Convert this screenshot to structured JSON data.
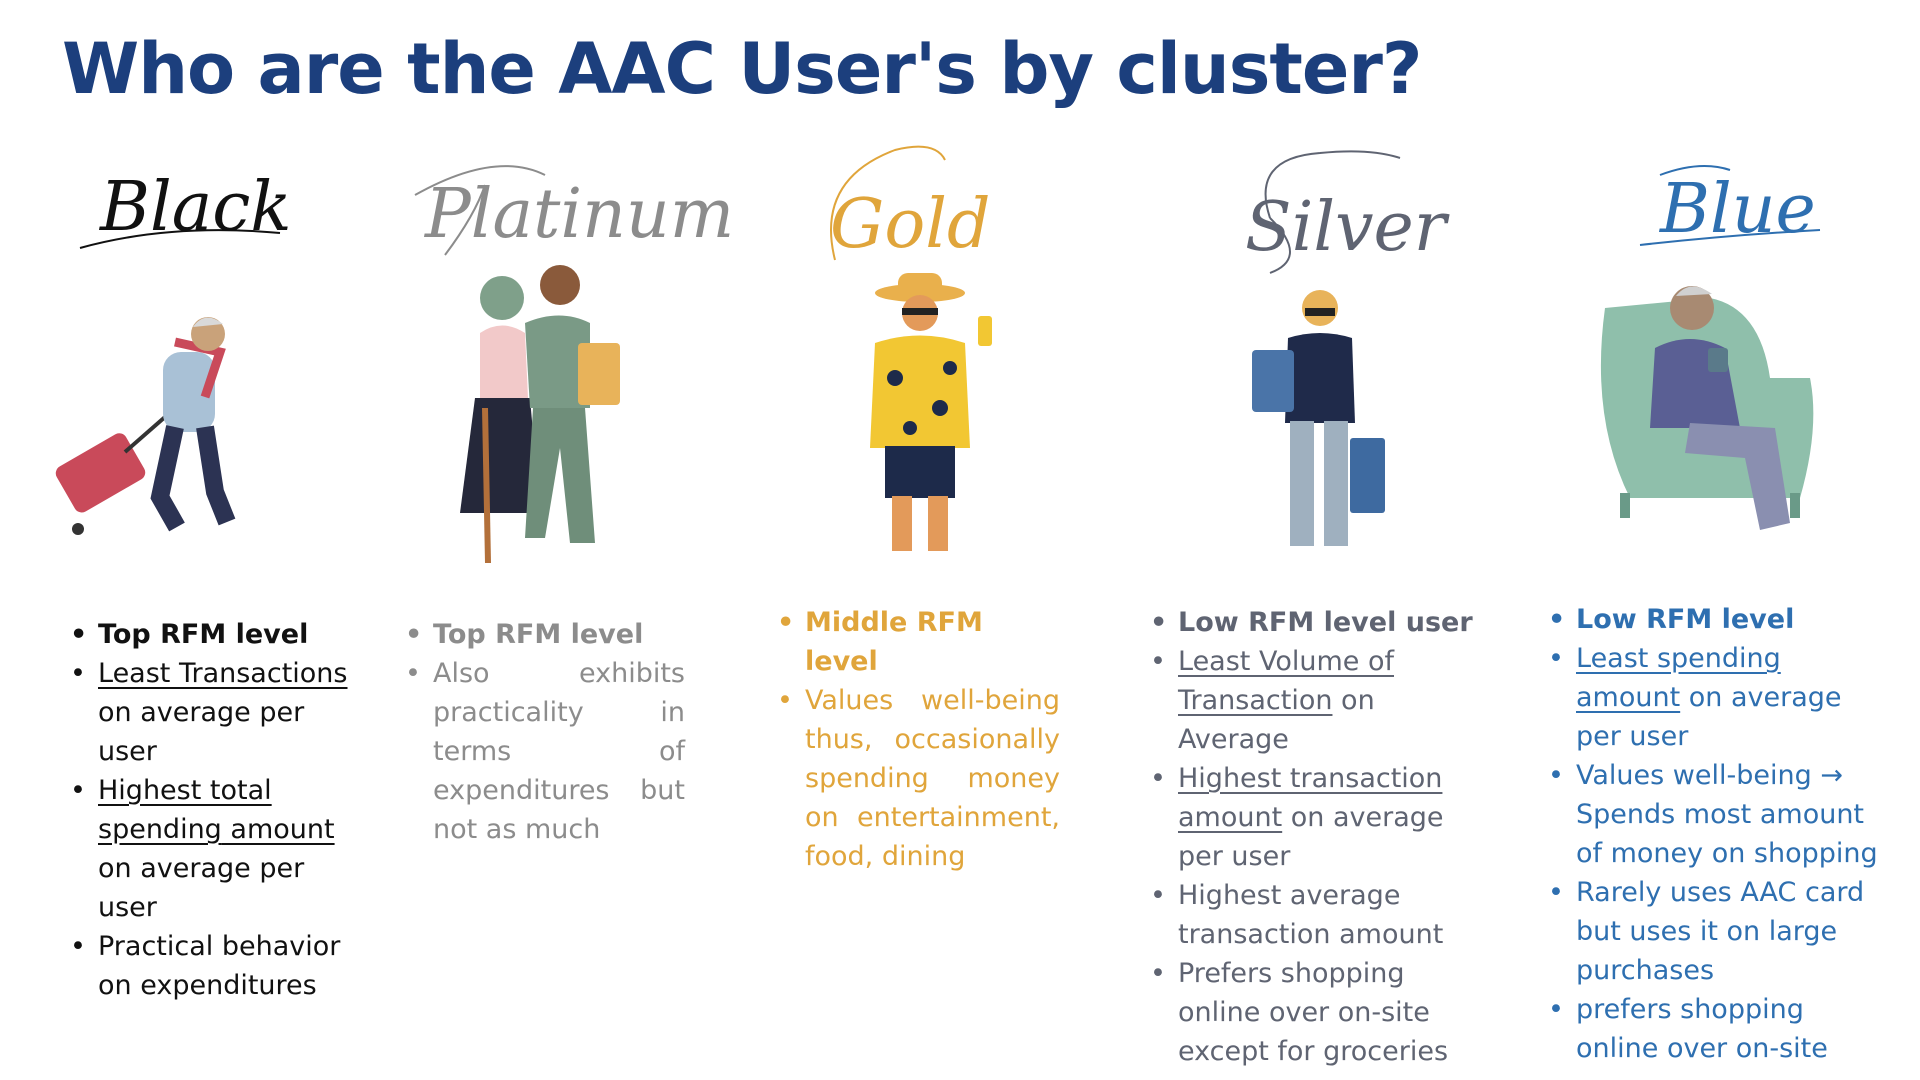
{
  "title": "Who are the AAC User's by cluster?",
  "colors": {
    "title": "#1c3f7d",
    "black": "#111111",
    "platinum": "#8c8c8c",
    "gold": "#e0a53b",
    "silver": "#5f6472",
    "blue": "#2e6fb0"
  },
  "clusters": [
    {
      "name": "Black",
      "illustration": "traveler-with-suitcase",
      "bullets": {
        "b1": "Top RFM level",
        "b2a": "Least Transactions",
        "b2b": " on average per user",
        "b3a": "Highest total spending",
        "b3b": " amount ",
        "b3c": "on average per user",
        "b4": "Practical behavior on expenditures"
      }
    },
    {
      "name": "Platinum",
      "illustration": "elderly-couple-walking",
      "bullets": {
        "b1": "Top RFM level",
        "b2": "Also exhibits practicality in terms of expenditures but not as much"
      }
    },
    {
      "name": "Gold",
      "illustration": "tourist-in-hawaiian-shirt",
      "bullets": {
        "b1": "Middle RFM level",
        "b2": "Values well-being thus, occasionally spending money on entertainment, food, dining"
      }
    },
    {
      "name": "Silver",
      "illustration": "man-with-shopping-bags",
      "bullets": {
        "b1": "Low RFM level user",
        "b2a": "Least Volume of Transaction",
        "b2b": " on Average",
        "b3a": "Highest transaction amount",
        "b3b": " on average per user",
        "b4": "Highest average transaction amount",
        "b5": "Prefers shopping online over on-site except for groceries"
      }
    },
    {
      "name": "Blue",
      "illustration": "man-in-armchair-with-mug",
      "bullets": {
        "b1": "Low RFM level",
        "b2a": "Least spending amount",
        "b2b": " on average per user",
        "b3": "Values well-being → Spends most amount of money on shopping",
        "b4": "Rarely uses AAC card but uses it on large purchases",
        "b5": "prefers shopping online over on-site"
      }
    }
  ]
}
